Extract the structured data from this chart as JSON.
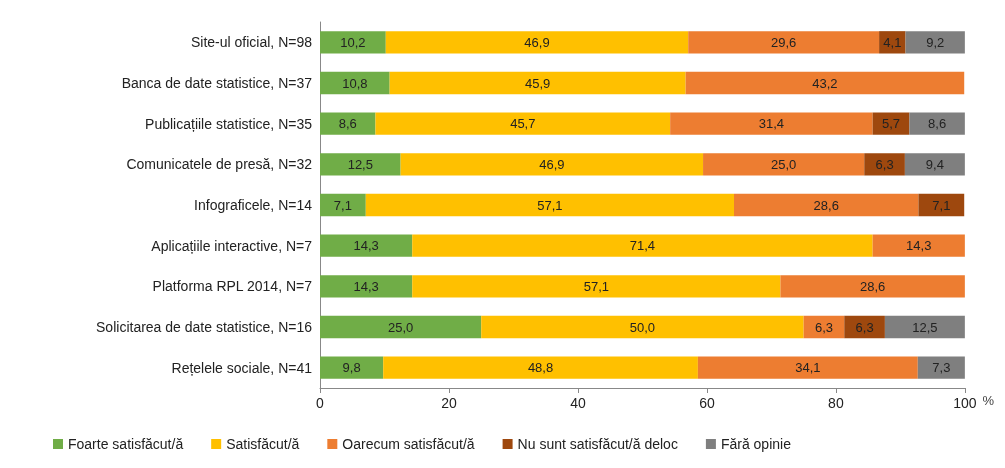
{
  "chart_data": {
    "type": "bar",
    "orientation": "horizontal",
    "stacked": true,
    "xlabel": "%",
    "categories": [
      "Site-ul oficial, N=98",
      "Banca de date statistice, N=37",
      "Publicațiile statistice, N=35",
      "Comunicatele de presă, N=32",
      "Infograficele, N=14",
      "Aplicațiile interactive, N=7",
      "Platforma RPL 2014, N=7",
      "Solicitarea de date statistice, N=16",
      "Rețelele sociale, N=41"
    ],
    "series": [
      {
        "name": "Foarte satisfăcut/ă",
        "color": "#70ad47",
        "values": [
          10.2,
          10.8,
          8.6,
          12.5,
          7.1,
          14.3,
          14.3,
          25.0,
          9.8
        ],
        "value_labels": [
          "10,2",
          "10,8",
          "8,6",
          "12,5",
          "7,1",
          "14,3",
          "14,3",
          "25,0",
          "9,8"
        ]
      },
      {
        "name": "Satisfăcut/ă",
        "color": "#ffc000",
        "values": [
          46.9,
          45.9,
          45.7,
          46.9,
          57.1,
          71.4,
          57.1,
          50.0,
          48.8
        ],
        "value_labels": [
          "46,9",
          "45,9",
          "45,7",
          "46,9",
          "57,1",
          "71,4",
          "57,1",
          "50,0",
          "48,8"
        ]
      },
      {
        "name": "Oarecum satisfăcut/ă",
        "color": "#ed7d31",
        "values": [
          29.6,
          43.2,
          31.4,
          25.0,
          28.6,
          14.3,
          28.6,
          6.3,
          34.1
        ],
        "value_labels": [
          "29,6",
          "43,2",
          "31,4",
          "25,0",
          "28,6",
          "14,3",
          "28,6",
          "6,3",
          "34,1"
        ]
      },
      {
        "name": "Nu sunt satisfăcut/ă deloc",
        "color": "#9e480e",
        "values": [
          4.1,
          null,
          5.7,
          6.3,
          7.1,
          null,
          null,
          6.3,
          null
        ],
        "value_labels": [
          "4,1",
          null,
          "5,7",
          "6,3",
          "7,1",
          null,
          null,
          "6,3",
          null
        ]
      },
      {
        "name": "Fără opinie",
        "color": "#7f7f7f",
        "values": [
          9.2,
          null,
          8.6,
          9.4,
          null,
          null,
          null,
          12.5,
          7.3
        ],
        "value_labels": [
          "9,2",
          null,
          "8,6",
          "9,4",
          null,
          null,
          null,
          "12,5",
          "7,3"
        ]
      }
    ],
    "xlim": [
      0,
      100
    ],
    "xticks": [
      0,
      20,
      40,
      60,
      80,
      100
    ],
    "grid": false,
    "legend": "bottom"
  }
}
